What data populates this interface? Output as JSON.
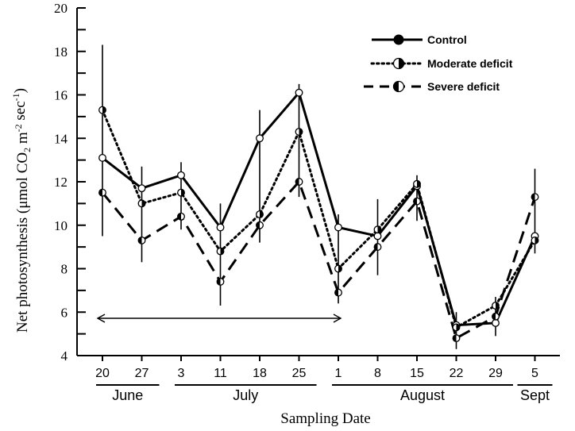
{
  "chart_data": {
    "type": "line",
    "ylabel_parts": [
      "Net photosynthesis (",
      "μmol CO",
      "2",
      " m",
      "-2",
      " sec",
      "-1",
      ")"
    ],
    "xlabel": "Sampling Date",
    "ylim": [
      4,
      20
    ],
    "yticks": [
      4,
      6,
      8,
      10,
      12,
      14,
      16,
      18,
      20
    ],
    "x_ticklabels": [
      "20",
      "27",
      "3",
      "11",
      "18",
      "25",
      "1",
      "8",
      "15",
      "22",
      "29",
      "5"
    ],
    "months": [
      {
        "label": "June",
        "start": 0,
        "end": 1
      },
      {
        "label": "July",
        "start": 2,
        "end": 5
      },
      {
        "label": "August",
        "start": 6,
        "end": 10
      },
      {
        "label": "Sept",
        "start": 11,
        "end": 11
      }
    ],
    "arrow_range": [
      0,
      6
    ],
    "legend_position": "top-right",
    "series": [
      {
        "name": "Control",
        "style": "solid",
        "marker": "filled",
        "values": [
          13.1,
          11.7,
          12.3,
          9.9,
          14.0,
          16.1,
          9.9,
          9.5,
          11.8,
          5.4,
          5.5,
          9.5
        ],
        "err": [
          0,
          0,
          0.5,
          0,
          1.3,
          0.4,
          0,
          0,
          0.5,
          0,
          0,
          0
        ]
      },
      {
        "name": "Moderate deficit",
        "style": "dotted",
        "marker": "half-right",
        "values": [
          15.3,
          11.0,
          11.5,
          8.8,
          10.5,
          14.3,
          8.0,
          9.8,
          11.9,
          5.3,
          6.3,
          9.3
        ],
        "err": [
          0,
          0,
          0,
          0,
          0,
          0,
          0,
          0,
          0,
          0,
          0,
          0
        ]
      },
      {
        "name": "Severe deficit",
        "style": "dashed",
        "marker": "half-left",
        "values": [
          11.5,
          9.3,
          10.4,
          7.4,
          10.0,
          12.0,
          6.9,
          9.0,
          11.1,
          4.8,
          5.8,
          11.3
        ],
        "err": [
          2.0,
          1.0,
          0,
          1.0,
          0.6,
          0.5,
          0,
          1.3,
          0,
          0,
          0,
          1.3
        ]
      }
    ],
    "error_bars": [
      {
        "x": 0,
        "low": 9.5,
        "high": 18.3
      },
      {
        "x": 1,
        "low": 8.3,
        "high": 12.7
      },
      {
        "x": 2,
        "low": 9.8,
        "high": 12.9
      },
      {
        "x": 3,
        "low": 6.3,
        "high": 11.0
      },
      {
        "x": 4,
        "low": 9.2,
        "high": 15.3
      },
      {
        "x": 5,
        "low": 11.3,
        "high": 16.5
      },
      {
        "x": 6,
        "low": 6.4,
        "high": 10.5
      },
      {
        "x": 7,
        "low": 7.7,
        "high": 11.2
      },
      {
        "x": 8,
        "low": 10.2,
        "high": 12.3
      },
      {
        "x": 9,
        "low": 4.3,
        "high": 6.0
      },
      {
        "x": 10,
        "low": 4.9,
        "high": 6.7
      },
      {
        "x": 11,
        "low": 8.7,
        "high": 12.6
      }
    ]
  }
}
